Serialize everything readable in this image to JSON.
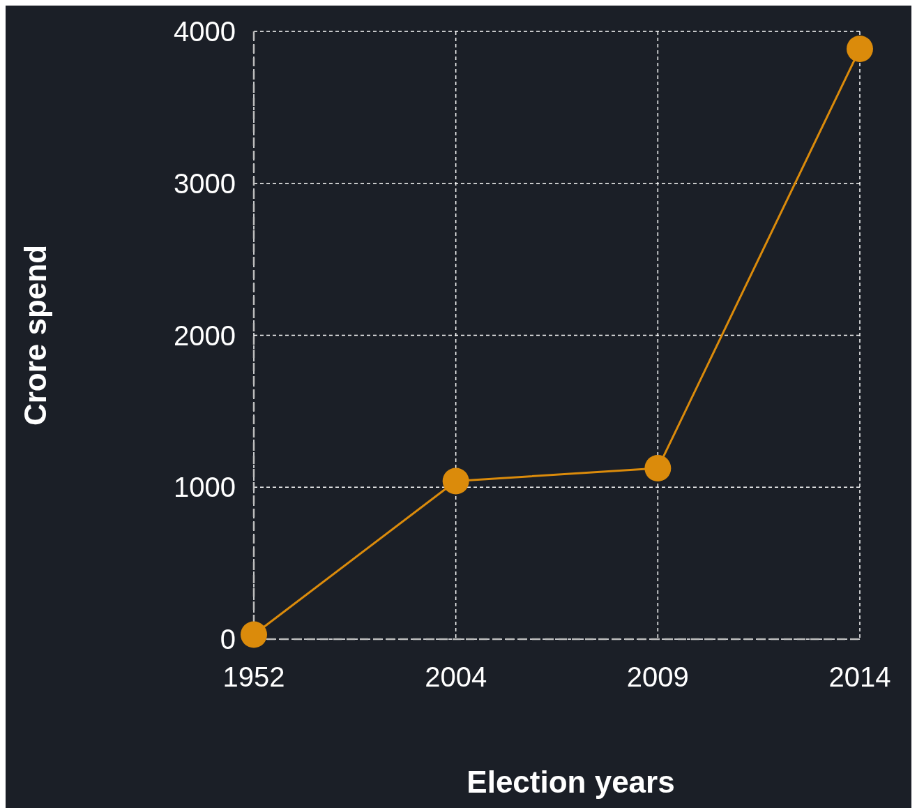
{
  "chart_data": {
    "type": "line",
    "xlabel": "Election years",
    "ylabel": "Crore spend",
    "categories": [
      "1952",
      "2004",
      "2009",
      "2014"
    ],
    "series": [
      {
        "color": "#db8b0b",
        "values": [
          30,
          1040,
          1125,
          3885
        ]
      }
    ],
    "ylim": [
      0,
      4000
    ],
    "yticks": [
      0,
      1000,
      2000,
      3000,
      4000
    ],
    "grid": true,
    "marker": "circle",
    "line_style": "solid"
  }
}
